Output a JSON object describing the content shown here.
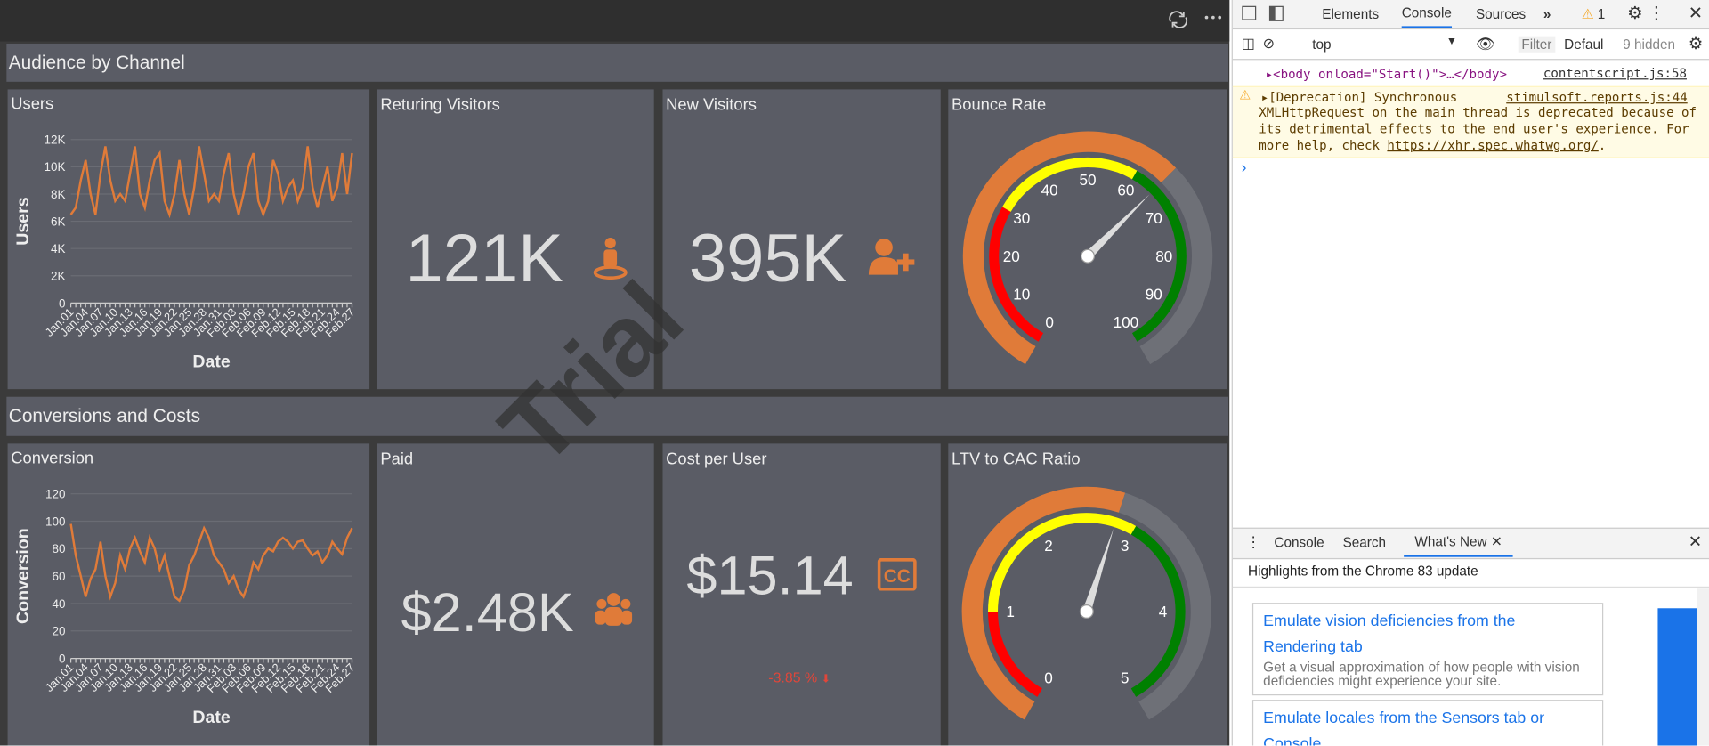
{
  "watermark": "Trial",
  "sections": [
    {
      "title": "Audience by Channel"
    },
    {
      "title": "Conversions and Costs"
    }
  ],
  "tiles": [
    {
      "title": "Returing Visitors",
      "value": "121K"
    },
    {
      "title": "New Visitors",
      "value": "395K"
    },
    {
      "title": "Paid",
      "value": "$2.48K"
    },
    {
      "title": "Cost per User",
      "value": "$15.14",
      "change": "-3.85 %"
    }
  ],
  "chart_data": [
    {
      "type": "line",
      "title": "Users",
      "y_label": "Users",
      "x_label": "Date",
      "color": "#e07b39",
      "categories": [
        "Jan.01",
        null,
        null,
        "Jan.04",
        null,
        null,
        "Jan.07",
        null,
        null,
        "Jan.10",
        null,
        null,
        "Jan.13",
        null,
        null,
        "Jan.16",
        null,
        null,
        "Jan.19",
        null,
        null,
        "Jan.22",
        null,
        null,
        "Jan.25",
        null,
        null,
        "Jan.28",
        null,
        null,
        "Jan.31",
        null,
        null,
        "Feb.03",
        null,
        null,
        "Feb.06",
        null,
        null,
        "Feb.09",
        null,
        null,
        "Feb.12",
        null,
        null,
        "Feb.15",
        null,
        null,
        "Feb.18",
        null,
        null,
        "Feb.21",
        null,
        null,
        "Feb.24",
        null,
        null,
        "Feb.27"
      ],
      "values": [
        6500,
        7000,
        9000,
        10500,
        8000,
        6500,
        9500,
        11500,
        9000,
        7500,
        8000,
        7500,
        9500,
        11500,
        8000,
        7000,
        9000,
        10500,
        11000,
        7500,
        6500,
        8000,
        10500,
        8000,
        6500,
        8500,
        11500,
        9500,
        7500,
        8000,
        7500,
        9500,
        11000,
        8000,
        6500,
        8000,
        10000,
        11000,
        7500,
        6500,
        7500,
        10500,
        9500,
        7500,
        8500,
        9000,
        7500,
        8500,
        11500,
        8500,
        7000,
        8500,
        10000,
        7500,
        8500,
        11000,
        8000,
        11000
      ],
      "ylim": [
        0,
        12000
      ],
      "yticks": [
        0,
        {
          "value": 2000,
          "label": "2K"
        },
        {
          "value": 4000,
          "label": "4K"
        },
        {
          "value": 6000,
          "label": "6K"
        },
        {
          "value": 8000,
          "label": "8K"
        },
        {
          "value": 10000,
          "label": "10K"
        },
        {
          "value": 12000,
          "label": "12K"
        }
      ],
      "grid": true
    },
    {
      "type": "line",
      "title": "Conversion",
      "y_label": "Conversion",
      "x_label": "Date",
      "color": "#e07b39",
      "categories": [
        "Jan.01",
        null,
        null,
        "Jan.04",
        null,
        null,
        "Jan.07",
        null,
        null,
        "Jan.10",
        null,
        null,
        "Jan.13",
        null,
        null,
        "Jan.16",
        null,
        null,
        "Jan.19",
        null,
        null,
        "Jan.22",
        null,
        null,
        "Jan.25",
        null,
        null,
        "Jan.28",
        null,
        null,
        "Jan.31",
        null,
        null,
        "Feb.03",
        null,
        null,
        "Feb.06",
        null,
        null,
        "Feb.09",
        null,
        null,
        "Feb.12",
        null,
        null,
        "Feb.15",
        null,
        null,
        "Feb.18",
        null,
        null,
        "Feb.21",
        null,
        null,
        "Feb.24",
        null,
        null,
        "Feb.27"
      ],
      "values": [
        98,
        75,
        60,
        45,
        58,
        65,
        85,
        60,
        45,
        55,
        75,
        65,
        80,
        88,
        78,
        70,
        88,
        80,
        65,
        75,
        60,
        45,
        42,
        50,
        68,
        75,
        85,
        95,
        88,
        75,
        70,
        65,
        55,
        60,
        50,
        45,
        55,
        70,
        65,
        75,
        80,
        78,
        85,
        88,
        85,
        80,
        85,
        86,
        80,
        75,
        78,
        70,
        75,
        85,
        80,
        76,
        88,
        95
      ],
      "ylim": [
        0,
        120
      ],
      "yticks": [
        0,
        20,
        40,
        60,
        80,
        100,
        120
      ],
      "grid": true
    },
    {
      "type": "gauge",
      "title": "Bounce Rate",
      "range": [
        0,
        100
      ],
      "value": 65,
      "ticks": [
        0,
        10,
        20,
        30,
        40,
        50,
        60,
        70,
        80,
        90,
        100
      ],
      "bands": [
        {
          "from": 0,
          "to": 30,
          "color": "#ff0000"
        },
        {
          "from": 30,
          "to": 60,
          "color": "#ffff00"
        },
        {
          "from": 60,
          "to": 100,
          "color": "#008000"
        }
      ],
      "progress_color": "#e07b39",
      "rest_color": "#6e7077"
    },
    {
      "type": "gauge",
      "title": "LTV to CAC Ratio",
      "range": [
        0,
        5
      ],
      "value": 2.8,
      "ticks": [
        0,
        1,
        2,
        3,
        4,
        5
      ],
      "bands": [
        {
          "from": 0,
          "to": 1,
          "color": "#ff0000"
        },
        {
          "from": 1,
          "to": 3,
          "color": "#ffff00"
        },
        {
          "from": 3,
          "to": 5,
          "color": "#008000"
        }
      ],
      "progress_color": "#e07b39",
      "rest_color": "#6e7077"
    }
  ],
  "devtools": {
    "tabs": [
      "Elements",
      "Console",
      "Sources"
    ],
    "warnings": "1",
    "context": "top",
    "filter": "Filter",
    "level": "Defaul",
    "hidden": "9 hidden",
    "body_line": "<body onload=\"Start()\">…</body>",
    "body_source": "contentscript.js:58",
    "warning_head": "[Deprecation] Synchronous",
    "warning_source": "stimulsoft.reports.js:44",
    "warning_text": "XMLHttpRequest on the main thread is deprecated because of its detrimental effects to the end user's experience. For more help, check ",
    "warning_link": "https://xhr.spec.whatwg.org/",
    "warning_end": ".",
    "drawer_tabs": [
      "Console",
      "Search",
      "What's New"
    ],
    "highlights": "Highlights from the Chrome 83 update",
    "cards": [
      {
        "title": "Emulate vision deficiencies from the Rendering tab",
        "text": "Get a visual approximation of how people with vision deficiencies might experience your site."
      },
      {
        "title": "Emulate locales from the Sensors tab or Console"
      }
    ]
  }
}
